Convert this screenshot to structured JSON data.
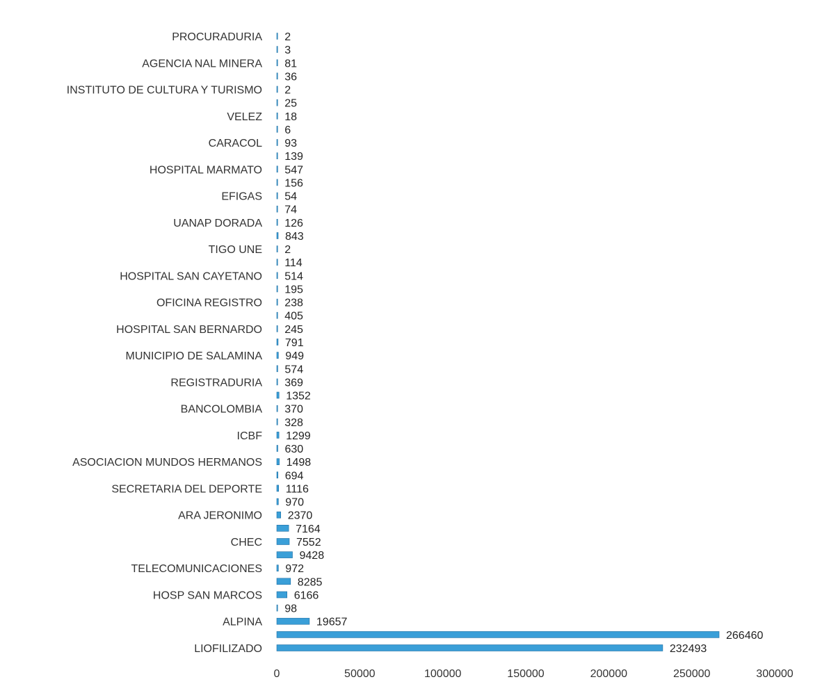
{
  "chart_data": {
    "type": "bar",
    "orientation": "horizontal",
    "title": "",
    "xlabel": "",
    "ylabel": "",
    "xlim": [
      0,
      300000
    ],
    "xticks": [
      "0",
      "50000",
      "100000",
      "150000",
      "200000",
      "250000",
      "300000"
    ],
    "grid": false,
    "legend": "none",
    "colors": {
      "bar": "#3a9fd8",
      "bar_edge": "#1f6fa3"
    },
    "rows": [
      {
        "label": "PROCURADURIA",
        "value": 2
      },
      {
        "label": "",
        "value": 3
      },
      {
        "label": "AGENCIA NAL MINERA",
        "value": 81
      },
      {
        "label": "",
        "value": 36
      },
      {
        "label": "INSTITUTO DE CULTURA Y TURISMO",
        "value": 2
      },
      {
        "label": "",
        "value": 25
      },
      {
        "label": "VELEZ",
        "value": 18
      },
      {
        "label": "",
        "value": 6
      },
      {
        "label": "CARACOL",
        "value": 93
      },
      {
        "label": "",
        "value": 139
      },
      {
        "label": "HOSPITAL MARMATO",
        "value": 547
      },
      {
        "label": "",
        "value": 156
      },
      {
        "label": "EFIGAS",
        "value": 54
      },
      {
        "label": "",
        "value": 74
      },
      {
        "label": "UANAP DORADA",
        "value": 126
      },
      {
        "label": "",
        "value": 843
      },
      {
        "label": "TIGO UNE",
        "value": 2
      },
      {
        "label": "",
        "value": 114
      },
      {
        "label": "HOSPITAL SAN CAYETANO",
        "value": 514
      },
      {
        "label": "",
        "value": 195
      },
      {
        "label": "OFICINA REGISTRO",
        "value": 238
      },
      {
        "label": "",
        "value": 405
      },
      {
        "label": "HOSPITAL SAN BERNARDO",
        "value": 245
      },
      {
        "label": "",
        "value": 791
      },
      {
        "label": "MUNICIPIO DE SALAMINA",
        "value": 949
      },
      {
        "label": "",
        "value": 574
      },
      {
        "label": "REGISTRADURIA",
        "value": 369
      },
      {
        "label": "",
        "value": 1352
      },
      {
        "label": "BANCOLOMBIA",
        "value": 370
      },
      {
        "label": "",
        "value": 328
      },
      {
        "label": "ICBF",
        "value": 1299
      },
      {
        "label": "",
        "value": 630
      },
      {
        "label": "ASOCIACION MUNDOS HERMANOS",
        "value": 1498
      },
      {
        "label": "",
        "value": 694
      },
      {
        "label": "SECRETARIA DEL DEPORTE",
        "value": 1116
      },
      {
        "label": "",
        "value": 970
      },
      {
        "label": "ARA JERONIMO",
        "value": 2370
      },
      {
        "label": "",
        "value": 7164
      },
      {
        "label": "CHEC",
        "value": 7552
      },
      {
        "label": "",
        "value": 9428
      },
      {
        "label": "TELECOMUNICACIONES",
        "value": 972
      },
      {
        "label": "",
        "value": 8285
      },
      {
        "label": "HOSP SAN MARCOS",
        "value": 6166
      },
      {
        "label": "",
        "value": 98
      },
      {
        "label": "ALPINA",
        "value": 19657
      },
      {
        "label": "",
        "value": 266460
      },
      {
        "label": "LIOFILIZADO",
        "value": 232493
      }
    ]
  }
}
